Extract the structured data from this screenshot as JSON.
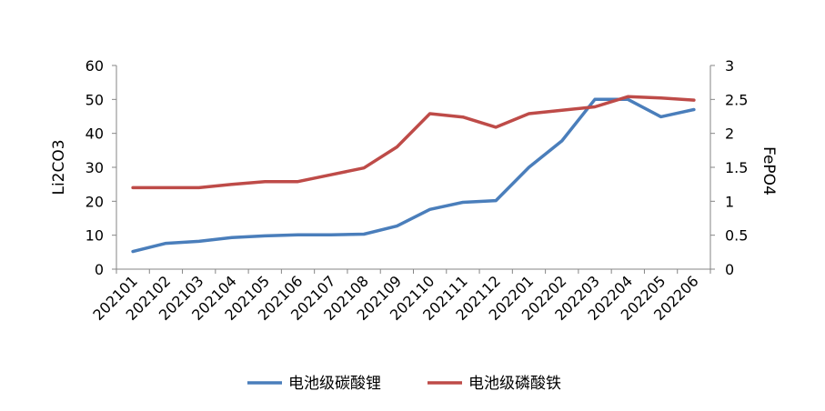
{
  "chart_data": {
    "type": "line",
    "title": "",
    "categories": [
      "202101",
      "202102",
      "202103",
      "202104",
      "202105",
      "202106",
      "202107",
      "202108",
      "202109",
      "202110",
      "202111",
      "202112",
      "202201",
      "202202",
      "202203",
      "202204",
      "202205",
      "202206"
    ],
    "y_left": {
      "label": "Li2CO3",
      "ylim": [
        0,
        60
      ],
      "ticks": [
        0,
        10,
        20,
        30,
        40,
        50,
        60
      ]
    },
    "y_right": {
      "label": "FePO4",
      "ylim": [
        0,
        3
      ],
      "ticks": [
        "0",
        "0.5",
        "1",
        "1.5",
        "2",
        "2.5",
        "3"
      ]
    },
    "grid": false,
    "legend_position": "bottom",
    "series": [
      {
        "name": "电池级碳酸锂",
        "axis": "left",
        "color": "#4a7ebb",
        "values": [
          5.2,
          7.6,
          8.2,
          9.3,
          9.8,
          10.1,
          10.1,
          10.3,
          12.7,
          17.6,
          19.7,
          20.2,
          30.0,
          37.8,
          50.0,
          50.0,
          44.9,
          47.0
        ]
      },
      {
        "name": "电池级磷酸铁",
        "axis": "right",
        "color": "#be4b48",
        "values": [
          1.2,
          1.2,
          1.2,
          1.25,
          1.29,
          1.29,
          1.39,
          1.49,
          1.8,
          2.29,
          2.24,
          2.09,
          2.29,
          2.34,
          2.39,
          2.54,
          2.52,
          2.49
        ]
      }
    ]
  }
}
